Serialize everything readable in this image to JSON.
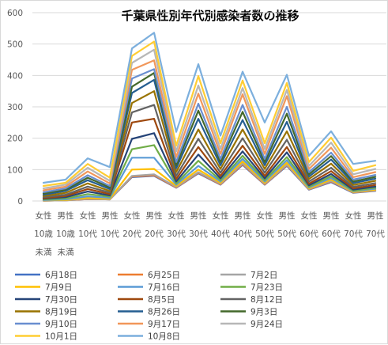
{
  "chart_data": {
    "type": "line",
    "title": "千葉県性別年代別感染者数の推移",
    "categories": [
      [
        "女性",
        "10歳",
        "未満"
      ],
      [
        "男性",
        "10歳",
        "未満"
      ],
      [
        "女性",
        "10代"
      ],
      [
        "男性",
        "10代"
      ],
      [
        "女性",
        "20代"
      ],
      [
        "男性",
        "20代"
      ],
      [
        "女性",
        "30代"
      ],
      [
        "男性",
        "30代"
      ],
      [
        "女性",
        "40代"
      ],
      [
        "男性",
        "40代"
      ],
      [
        "女性",
        "50代"
      ],
      [
        "男性",
        "50代"
      ],
      [
        "女性",
        "60代"
      ],
      [
        "男性",
        "60代"
      ],
      [
        "女性",
        "70代"
      ],
      [
        "男性",
        "70代"
      ]
    ],
    "y_ticks": [
      "0",
      "100",
      "200",
      "300",
      "400",
      "500",
      "600"
    ],
    "ylim": [
      0,
      600
    ],
    "grid": true,
    "legend_position": "bottom",
    "series": [
      {
        "name": "6月18日",
        "color": "#4472C4",
        "values": [
          1,
          2,
          6,
          5,
          76,
          80,
          42,
          88,
          52,
          115,
          52,
          112,
          36,
          60,
          26,
          32
        ]
      },
      {
        "name": "6月25日",
        "color": "#ED7D31",
        "values": [
          1,
          2,
          6,
          5,
          78,
          82,
          43,
          90,
          53,
          117,
          53,
          114,
          37,
          62,
          27,
          33
        ]
      },
      {
        "name": "7月2日",
        "color": "#A5A5A5",
        "values": [
          1,
          2,
          7,
          5,
          80,
          85,
          45,
          92,
          55,
          120,
          55,
          116,
          38,
          64,
          28,
          34
        ]
      },
      {
        "name": "7月9日",
        "color": "#FFC000",
        "values": [
          2,
          3,
          10,
          7,
          100,
          102,
          48,
          100,
          58,
          126,
          58,
          122,
          40,
          68,
          29,
          36
        ]
      },
      {
        "name": "7月16日",
        "color": "#5B9BD5",
        "values": [
          3,
          5,
          15,
          10,
          138,
          138,
          52,
          112,
          62,
          134,
          62,
          130,
          43,
          73,
          31,
          39
        ]
      },
      {
        "name": "7月23日",
        "color": "#70AD47",
        "values": [
          5,
          8,
          22,
          14,
          165,
          178,
          56,
          128,
          66,
          144,
          66,
          140,
          46,
          79,
          33,
          42
        ]
      },
      {
        "name": "7月30日",
        "color": "#264478",
        "values": [
          7,
          12,
          30,
          18,
          198,
          216,
          62,
          148,
          72,
          158,
          72,
          155,
          50,
          86,
          36,
          46
        ]
      },
      {
        "name": "8月5日",
        "color": "#9E480E",
        "values": [
          9,
          16,
          38,
          22,
          250,
          262,
          70,
          172,
          80,
          176,
          80,
          172,
          55,
          95,
          40,
          51
        ]
      },
      {
        "name": "8月12日",
        "color": "#636363",
        "values": [
          12,
          20,
          46,
          27,
          282,
          306,
          80,
          198,
          90,
          200,
          90,
          195,
          62,
          106,
          45,
          57
        ]
      },
      {
        "name": "8月19日",
        "color": "#997300",
        "values": [
          16,
          26,
          56,
          32,
          312,
          350,
          92,
          228,
          102,
          228,
          102,
          222,
          70,
          119,
          51,
          64
        ]
      },
      {
        "name": "8月26日",
        "color": "#255E91",
        "values": [
          20,
          32,
          66,
          38,
          344,
          386,
          104,
          262,
          114,
          258,
          114,
          252,
          78,
          132,
          57,
          71
        ]
      },
      {
        "name": "9月3日",
        "color": "#43682B",
        "values": [
          24,
          36,
          74,
          43,
          364,
          408,
          114,
          288,
          124,
          284,
          124,
          278,
          85,
          143,
          62,
          77
        ]
      },
      {
        "name": "9月10日",
        "color": "#698ED0",
        "values": [
          28,
          40,
          82,
          48,
          390,
          420,
          124,
          310,
          134,
          306,
          134,
          300,
          92,
          154,
          68,
          83
        ]
      },
      {
        "name": "9月17日",
        "color": "#F1975A",
        "values": [
          34,
          46,
          94,
          56,
          418,
          448,
          140,
          342,
          150,
          340,
          150,
          334,
          102,
          170,
          76,
          92
        ]
      },
      {
        "name": "9月24日",
        "color": "#B7B7B7",
        "values": [
          40,
          52,
          106,
          64,
          440,
          482,
          158,
          368,
          166,
          360,
          166,
          354,
          112,
          186,
          85,
          102
        ]
      },
      {
        "name": "10月1日",
        "color": "#FFCD33",
        "values": [
          48,
          58,
          118,
          74,
          462,
          508,
          176,
          398,
          184,
          384,
          184,
          376,
          124,
          202,
          96,
          114
        ]
      },
      {
        "name": "10月8日",
        "color": "#7CAFDD",
        "values": [
          58,
          68,
          136,
          108,
          486,
          536,
          220,
          436,
          208,
          412,
          250,
          402,
          144,
          222,
          118,
          128
        ]
      }
    ]
  }
}
